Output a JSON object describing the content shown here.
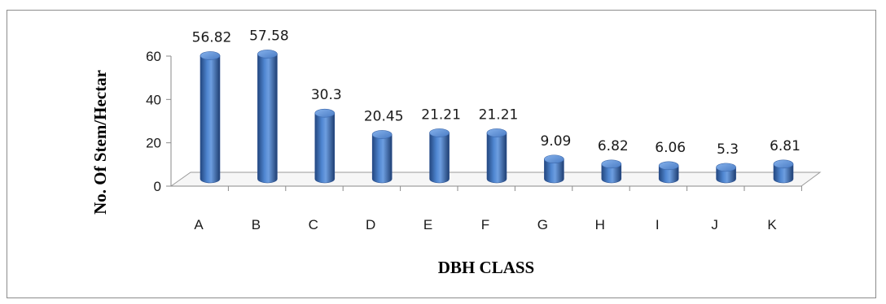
{
  "chart_data": {
    "type": "bar",
    "style": "3d-cylinder",
    "categories": [
      "A",
      "B",
      "C",
      "D",
      "E",
      "F",
      "G",
      "H",
      "I",
      "J",
      "K"
    ],
    "values": [
      56.82,
      57.58,
      30.3,
      20.45,
      21.21,
      21.21,
      9.09,
      6.82,
      6.06,
      5.3,
      6.81
    ],
    "data_labels": [
      "56.82",
      "57.58",
      "30.3",
      "20.45",
      "21.21",
      "21.21",
      "9.09",
      "6.82",
      "6.06",
      "5.3",
      "6.81"
    ],
    "xlabel": "DBH CLASS",
    "ylabel": "No. Of Stem/Hectar",
    "ylim": [
      0,
      60
    ],
    "yticks": [
      "0",
      "20",
      "40",
      "60"
    ],
    "grid": false,
    "legend": "none",
    "bar_color": "#4a7cc4"
  }
}
